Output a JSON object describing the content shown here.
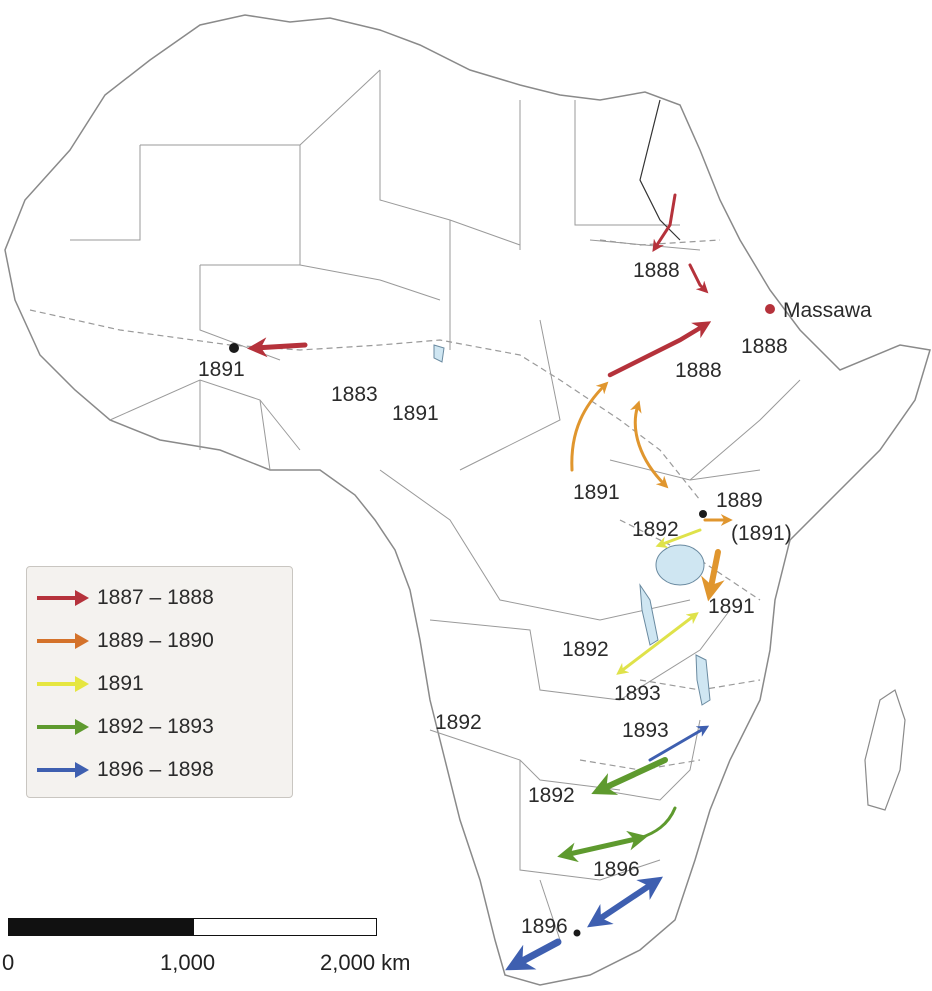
{
  "map": {
    "places": {
      "massawa": "Massawa"
    },
    "years": {
      "nile_north": "1888",
      "massawa_year": "1888",
      "sudan_1888": "1888",
      "west_1891": "1891",
      "chad_1883": "1883",
      "chad_1891": "1891",
      "south_sudan_1891": "1891",
      "lake_1889": "1889",
      "lake_1891_paren": "(1891)",
      "lake_1892": "1892",
      "tanz_1891": "1891",
      "zambia_1892": "1892",
      "malawi_1893": "1893",
      "angola_1892": "1892",
      "moz_1893": "1893",
      "botswana_1892": "1892",
      "sa_1896_a": "1896",
      "sa_1896_b": "1896"
    }
  },
  "legend": {
    "items": [
      {
        "label": "1887 – 1888",
        "color": "#b5323b"
      },
      {
        "label": "1889 – 1890",
        "color": "#d4722a"
      },
      {
        "label": "1891",
        "color": "#e6e640"
      },
      {
        "label": "1892 – 1893",
        "color": "#5e9a2e"
      },
      {
        "label": "1896 – 1898",
        "color": "#3e5fb0"
      }
    ]
  },
  "scale": {
    "labels": [
      "0",
      "1,000",
      "2,000 km"
    ]
  },
  "colors": {
    "red": "#b5323b",
    "orange": "#e0962e",
    "yellow": "#dfe24a",
    "green": "#5e9a2e",
    "blue": "#3e5fb0",
    "border": "#8a8a8a",
    "lake": "#cfe6f2"
  }
}
